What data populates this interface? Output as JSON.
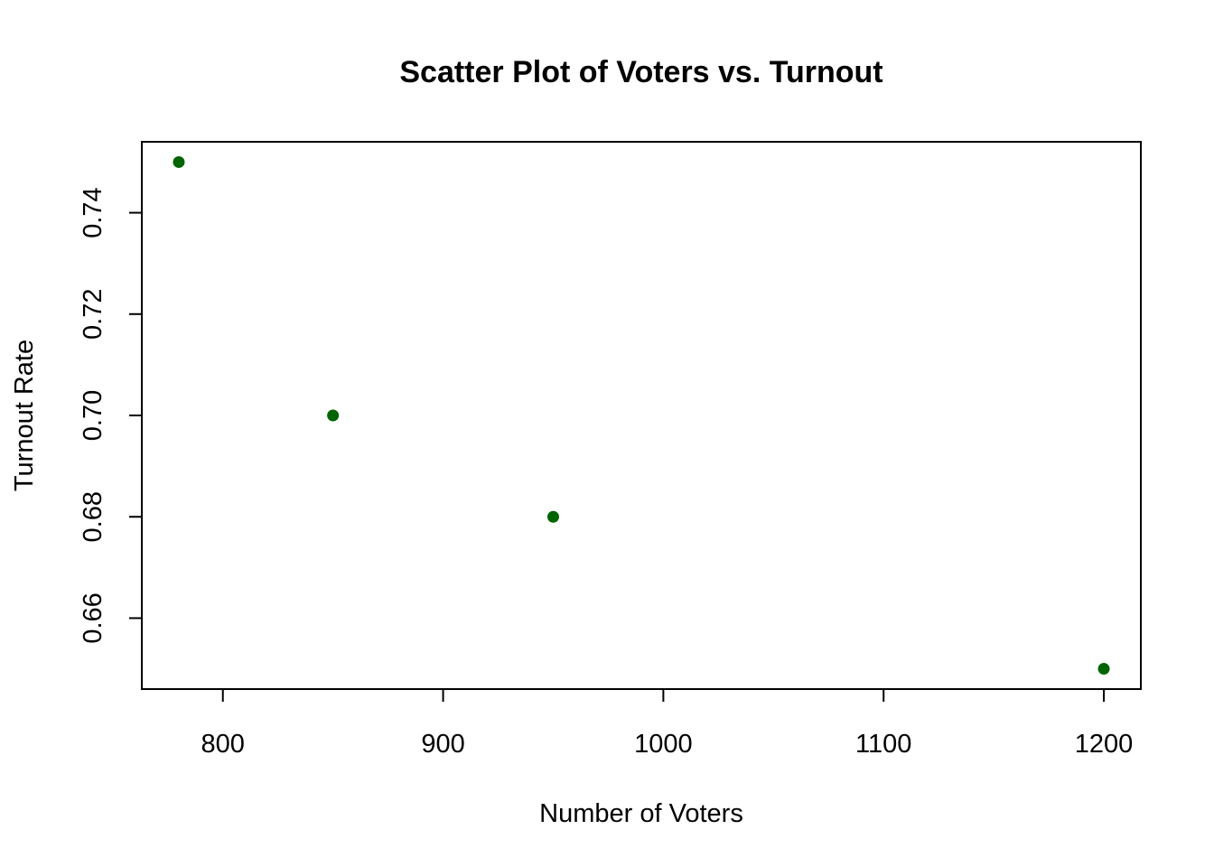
{
  "chart_data": {
    "type": "scatter",
    "title": "Scatter Plot of Voters vs. Turnout",
    "xlabel": "Number of Voters",
    "ylabel": "Turnout Rate",
    "x": [
      780,
      850,
      950,
      1200
    ],
    "y": [
      0.75,
      0.7,
      0.68,
      0.65
    ],
    "xlim": [
      763.2,
      1216.8
    ],
    "ylim": [
      0.646,
      0.754
    ],
    "xticks": [
      800,
      900,
      1000,
      1100,
      1200
    ],
    "xtick_labels": [
      "800",
      "900",
      "1000",
      "1100",
      "1200"
    ],
    "yticks": [
      0.66,
      0.68,
      0.7,
      0.72,
      0.74
    ],
    "ytick_labels": [
      "0.66",
      "0.68",
      "0.70",
      "0.72",
      "0.74"
    ],
    "point_color": "#006400",
    "grid": false,
    "legend": "none"
  }
}
